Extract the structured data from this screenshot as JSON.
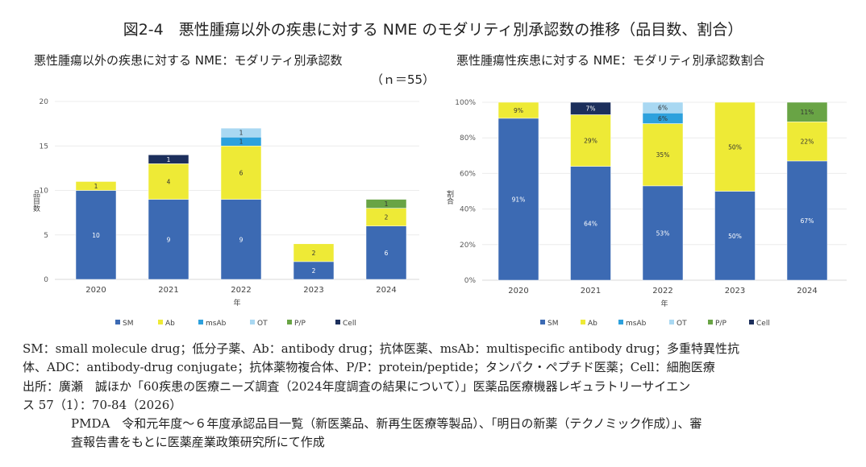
{
  "figure_title": "図2-4　悪性腫瘍以外の疾患に対する NME のモダリティ別承認数の推移（品目数、割合）",
  "colors": {
    "SM": "#3c6ab3",
    "Ab": "#eeea36",
    "msAb": "#2da1dd",
    "OT": "#a9d8f2",
    "P/P": "#69a445",
    "Cell": "#1c2f5c"
  },
  "chart_data": [
    {
      "type": "bar",
      "stacked": true,
      "title": "悪性腫瘍以外の疾患に対する NME：モダリティ別承認数",
      "subtitle": "（ｎ＝55）",
      "xlabel": "年",
      "ylabel": "品目数",
      "ylim": [
        0,
        20
      ],
      "yticks": [
        "0",
        "5",
        "10",
        "15",
        "20"
      ],
      "grid": true,
      "legend": "bottom",
      "categories": [
        "2020",
        "2021",
        "2022",
        "2023",
        "2024"
      ],
      "series": [
        {
          "name": "SM",
          "values": [
            10,
            9,
            9,
            2,
            6
          ],
          "labels": [
            "10",
            "9",
            "9",
            "2",
            "6"
          ]
        },
        {
          "name": "Ab",
          "values": [
            1,
            4,
            6,
            2,
            2
          ],
          "labels": [
            "1",
            "4",
            "6",
            "2",
            "2"
          ]
        },
        {
          "name": "msAb",
          "values": [
            0,
            0,
            1,
            0,
            0
          ],
          "labels": [
            "",
            "",
            "1",
            "",
            ""
          ]
        },
        {
          "name": "OT",
          "values": [
            0,
            0,
            1,
            0,
            0
          ],
          "labels": [
            "",
            "",
            "1",
            "",
            ""
          ]
        },
        {
          "name": "P/P",
          "values": [
            0,
            0,
            0,
            0,
            1
          ],
          "labels": [
            "",
            "",
            "",
            "",
            "1"
          ]
        },
        {
          "name": "Cell",
          "values": [
            0,
            1,
            0,
            0,
            0
          ],
          "labels": [
            "",
            "1",
            "",
            "",
            ""
          ]
        }
      ]
    },
    {
      "type": "bar",
      "stacked": true,
      "title": "悪性腫瘍性疾患に対する NME：モダリティ別承認数割合",
      "xlabel": "年",
      "ylabel": "割合",
      "ylim": [
        0,
        100
      ],
      "yticks": [
        "0%",
        "20%",
        "40%",
        "60%",
        "80%",
        "100%"
      ],
      "grid": true,
      "legend": "bottom",
      "categories": [
        "2020",
        "2021",
        "2022",
        "2023",
        "2024"
      ],
      "series": [
        {
          "name": "SM",
          "values": [
            91,
            64,
            53,
            50,
            67
          ],
          "labels": [
            "91%",
            "64%",
            "53%",
            "50%",
            "67%"
          ]
        },
        {
          "name": "Ab",
          "values": [
            9,
            29,
            35,
            50,
            22
          ],
          "labels": [
            "9%",
            "29%",
            "35%",
            "50%",
            "22%"
          ]
        },
        {
          "name": "msAb",
          "values": [
            0,
            0,
            6,
            0,
            0
          ],
          "labels": [
            "",
            "",
            "6%",
            "",
            ""
          ]
        },
        {
          "name": "OT",
          "values": [
            0,
            0,
            6,
            0,
            0
          ],
          "labels": [
            "",
            "",
            "6%",
            "",
            ""
          ]
        },
        {
          "name": "P/P",
          "values": [
            0,
            0,
            0,
            0,
            11
          ],
          "labels": [
            "",
            "",
            "",
            "",
            "11%"
          ]
        },
        {
          "name": "Cell",
          "values": [
            0,
            7,
            0,
            0,
            0
          ],
          "labels": [
            "",
            "7%",
            "",
            "",
            ""
          ]
        }
      ]
    }
  ],
  "notes": [
    "SM：small molecule drug；低分子薬、Ab：antibody drug；抗体医薬、msAb：multispecific antibody drug；多重特異性抗",
    "体、ADC：antibody-drug conjugate；抗体薬物複合体、P/P：protein/peptide；タンパク・ペプチド医薬；Cell：細胞医療",
    "出所：廣瀬　誠ほか「60疾患の医療ニーズ調査（2024年度調査の結果について）」医薬品医療機器レギュラトリーサイエン",
    "ス 57（1）：70-84（2026）",
    "PMDA　令和元年度～６年度承認品目一覧（新医薬品、新再生医療等製品）、「明日の新薬（テクノミック作成）」、審",
    "査報告書をもとに医薬産業政策研究所にて作成"
  ]
}
